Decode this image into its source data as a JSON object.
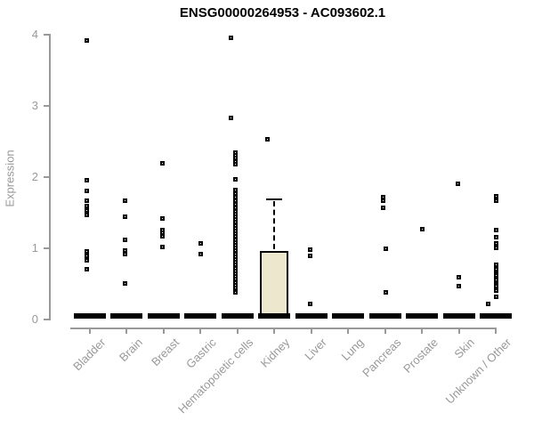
{
  "chart_data": {
    "type": "boxplot",
    "title": "ENSG00000264953 - AC093602.1",
    "ylabel": "Expression",
    "xlabel": "",
    "ylim": [
      0,
      4
    ],
    "yticks": [
      0,
      1,
      2,
      3,
      4
    ],
    "grid": false,
    "legend": null,
    "categories": [
      "Bladder",
      "Brain",
      "Breast",
      "Gastric",
      "Hematopoietic cells",
      "Kidney",
      "Liver",
      "Lung",
      "Pancreas",
      "Prostate",
      "Skin",
      "Unknown / Other"
    ],
    "colors": {
      "axis": "#999999",
      "label": "#999999",
      "point": "#000000",
      "median": "#000000",
      "box_fill": "#ECE7CD",
      "box_border": "#000000",
      "title": "#000000"
    },
    "groups": [
      {
        "category": "Bladder",
        "median": 0,
        "points": [
          [
            3.92,
            -3
          ],
          [
            1.95,
            -3
          ],
          [
            1.8,
            -3
          ],
          [
            1.67,
            -3
          ],
          [
            1.59,
            -3
          ],
          [
            1.53,
            -3
          ],
          [
            1.46,
            -3
          ],
          [
            0.95,
            -3
          ],
          [
            0.89,
            -3
          ],
          [
            0.83,
            -3
          ],
          [
            0.7,
            -3
          ]
        ]
      },
      {
        "category": "Brain",
        "median": 0,
        "points": [
          [
            1.67,
            -2
          ],
          [
            1.44,
            -2
          ],
          [
            1.11,
            -2
          ],
          [
            0.97,
            -2
          ],
          [
            0.92,
            -2
          ],
          [
            0.5,
            -2
          ]
        ]
      },
      {
        "category": "Breast",
        "median": 0,
        "points": [
          [
            2.19,
            -1
          ],
          [
            1.41,
            -1
          ],
          [
            1.25,
            -1
          ],
          [
            1.21,
            -1
          ],
          [
            1.17,
            -1
          ],
          [
            1.02,
            -1
          ]
        ]
      },
      {
        "category": "Gastric",
        "median": 0,
        "points": [
          [
            1.07,
            0
          ],
          [
            0.92,
            0
          ]
        ]
      },
      {
        "category": "Hematopoietic cells",
        "median": 0,
        "points": [
          [
            3.95,
            -7
          ],
          [
            2.83,
            -7
          ],
          [
            2.34,
            -2
          ],
          [
            2.3,
            -2
          ],
          [
            2.26,
            -2
          ],
          [
            2.22,
            -2
          ],
          [
            2.18,
            -2
          ],
          [
            1.96,
            -2
          ],
          [
            1.82,
            -2
          ],
          [
            1.77,
            -2
          ],
          [
            1.72,
            -2
          ],
          [
            1.67,
            -2
          ],
          [
            1.62,
            -2
          ],
          [
            1.56,
            -2
          ],
          [
            1.52,
            -2
          ],
          [
            1.48,
            -2
          ],
          [
            1.44,
            -2
          ],
          [
            1.4,
            -2
          ],
          [
            1.36,
            -2
          ],
          [
            1.32,
            -2
          ],
          [
            1.28,
            -2
          ],
          [
            1.24,
            -2
          ],
          [
            1.2,
            -2
          ],
          [
            1.16,
            -2
          ],
          [
            1.12,
            -2
          ],
          [
            1.08,
            -2
          ],
          [
            1.04,
            -2
          ],
          [
            1.0,
            -2
          ],
          [
            0.96,
            -2
          ],
          [
            0.92,
            -2
          ],
          [
            0.88,
            -2
          ],
          [
            0.84,
            -2
          ],
          [
            0.8,
            -2
          ],
          [
            0.76,
            -2
          ],
          [
            0.72,
            -2
          ],
          [
            0.68,
            -2
          ],
          [
            0.64,
            -2
          ],
          [
            0.6,
            -2
          ],
          [
            0.56,
            -2
          ],
          [
            0.52,
            -2
          ],
          [
            0.48,
            -2
          ],
          [
            0.44,
            -2
          ],
          [
            0.4,
            -2
          ],
          [
            0.38,
            -2
          ]
        ]
      },
      {
        "category": "Kidney",
        "median": 0,
        "box": {
          "q1": 0.04,
          "q3": 0.96,
          "median": 0,
          "whisker_high": 1.68
        },
        "points": [
          [
            2.53,
            -8
          ]
        ]
      },
      {
        "category": "Liver",
        "median": 0,
        "points": [
          [
            0.98,
            -1
          ],
          [
            0.89,
            -1
          ],
          [
            0.21,
            -1
          ]
        ]
      },
      {
        "category": "Lung",
        "median": 0,
        "points": []
      },
      {
        "category": "Pancreas",
        "median": 0,
        "points": [
          [
            1.71,
            -2
          ],
          [
            1.66,
            -2
          ],
          [
            1.57,
            -2
          ],
          [
            0.99,
            1
          ],
          [
            0.38,
            1
          ]
        ]
      },
      {
        "category": "Prostate",
        "median": 0,
        "points": [
          [
            1.27,
            0
          ]
        ]
      },
      {
        "category": "Skin",
        "median": 0,
        "points": [
          [
            1.9,
            -1
          ],
          [
            0.59,
            0
          ],
          [
            0.46,
            0
          ]
        ]
      },
      {
        "category": "Unknown / Other",
        "median": 0,
        "points": [
          [
            1.73,
            1
          ],
          [
            1.66,
            1
          ],
          [
            1.25,
            1
          ],
          [
            1.15,
            1
          ],
          [
            1.07,
            1
          ],
          [
            1.0,
            1
          ],
          [
            0.76,
            1
          ],
          [
            0.73,
            1
          ],
          [
            0.7,
            1
          ],
          [
            0.67,
            1
          ],
          [
            0.64,
            1
          ],
          [
            0.61,
            1
          ],
          [
            0.58,
            1
          ],
          [
            0.55,
            1
          ],
          [
            0.52,
            1
          ],
          [
            0.49,
            1
          ],
          [
            0.46,
            1
          ],
          [
            0.43,
            1
          ],
          [
            0.4,
            1
          ],
          [
            0.32,
            1
          ],
          [
            0.21,
            -8
          ]
        ]
      }
    ]
  }
}
